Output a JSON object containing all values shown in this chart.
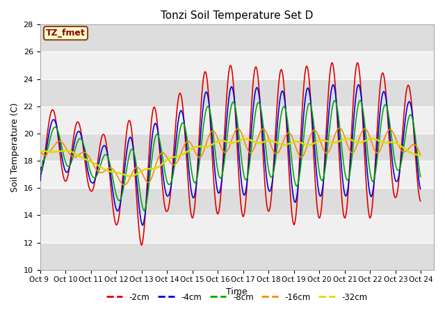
{
  "title": "Tonzi Soil Temperature Set D",
  "xlabel": "Time",
  "ylabel": "Soil Temperature (C)",
  "ylim": [
    10,
    28
  ],
  "yticks": [
    10,
    12,
    14,
    16,
    18,
    20,
    22,
    24,
    26,
    28
  ],
  "bg_color": "#dddddd",
  "band_color": "#f0f0f0",
  "annotation_text": "TZ_fmet",
  "annotation_color": "#8B0000",
  "annotation_bg": "#ffffcc",
  "annotation_border": "#8B4513",
  "lines": {
    "-2cm": {
      "color": "#dd0000",
      "lw": 1.2
    },
    "-4cm": {
      "color": "#0000dd",
      "lw": 1.2
    },
    "-8cm": {
      "color": "#00aa00",
      "lw": 1.2
    },
    "-16cm": {
      "color": "#ff8800",
      "lw": 1.2
    },
    "-32cm": {
      "color": "#dddd00",
      "lw": 1.8
    }
  },
  "xtick_labels": [
    "Oct 9 ",
    "Oct 10",
    "Oct 11",
    "Oct 12",
    "Oct 13",
    "Oct 14",
    "Oct 15",
    "Oct 16",
    "Oct 17",
    "Oct 18",
    "Oct 19",
    "Oct 20",
    "Oct 21",
    "Oct 22",
    "Oct 23",
    "Oct 24"
  ],
  "legend_labels": [
    "-2cm",
    "-4cm",
    "-8cm",
    "-16cm",
    "-32cm"
  ]
}
